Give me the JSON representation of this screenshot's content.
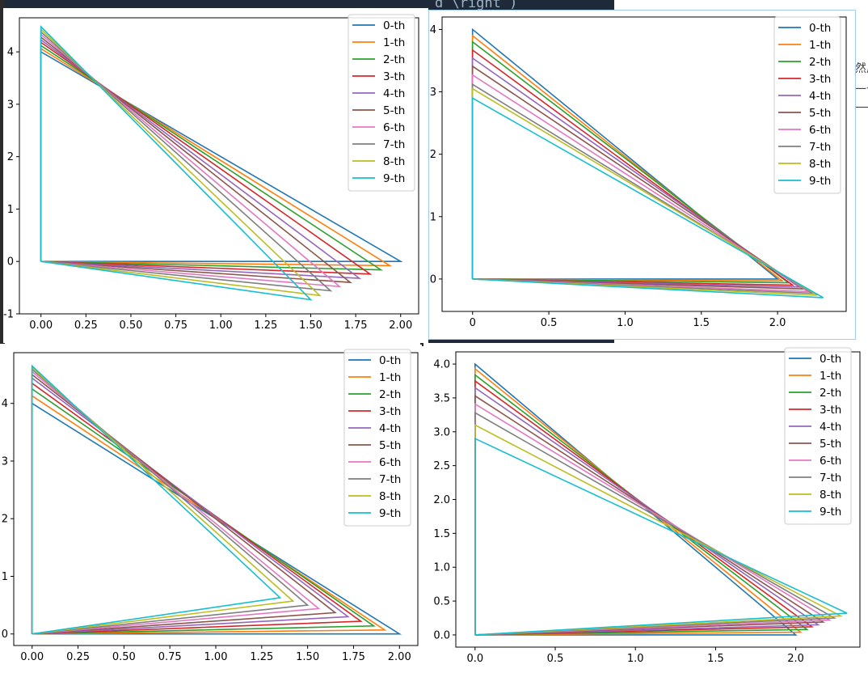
{
  "background": {
    "top_code_text": "d \\right )",
    "right_cjk_top": "然后",
    "right_cjk_bottom": "一个",
    "editor_bg": "#1e2a3a",
    "side_bg": "#2b2b2b"
  },
  "colors": [
    "#1f77b4",
    "#ff7f0e",
    "#2ca02c",
    "#d62728",
    "#9467bd",
    "#8c564b",
    "#e377c2",
    "#7f7f7f",
    "#bcbd22",
    "#17becf"
  ],
  "chart_data": [
    {
      "id": "top-left",
      "type": "line",
      "title": "",
      "xlabel": "",
      "ylabel": "",
      "xlim": [
        -0.12,
        2.1
      ],
      "ylim": [
        -1.0,
        4.65
      ],
      "xticks": [
        0,
        0.25,
        0.5,
        0.75,
        1.0,
        1.25,
        1.5,
        1.75,
        2.0
      ],
      "xtick_labels": [
        "0.00",
        "0.25",
        "0.50",
        "0.75",
        "1.00",
        "1.25",
        "1.50",
        "1.75",
        "2.00"
      ],
      "yticks": [
        -1,
        0,
        1,
        2,
        3,
        4
      ],
      "ytick_labels": [
        "-1",
        "0",
        "1",
        "2",
        "3",
        "4"
      ],
      "legend": "top-right",
      "series": [
        {
          "name": "0-th",
          "x": [
            0,
            0,
            2.0,
            0
          ],
          "y": [
            0,
            4.0,
            0,
            0
          ]
        },
        {
          "name": "1-th",
          "x": [
            0,
            0,
            1.94,
            0
          ],
          "y": [
            0,
            4.06,
            -0.08,
            0
          ]
        },
        {
          "name": "2-th",
          "x": [
            0,
            0,
            1.89,
            0
          ],
          "y": [
            0,
            4.12,
            -0.16,
            0
          ]
        },
        {
          "name": "3-th",
          "x": [
            0,
            0,
            1.83,
            0
          ],
          "y": [
            0,
            4.18,
            -0.24,
            0
          ]
        },
        {
          "name": "4-th",
          "x": [
            0,
            0,
            1.77,
            0
          ],
          "y": [
            0,
            4.23,
            -0.32,
            0
          ]
        },
        {
          "name": "5-th",
          "x": [
            0,
            0,
            1.72,
            0
          ],
          "y": [
            0,
            4.28,
            -0.4,
            0
          ]
        },
        {
          "name": "6-th",
          "x": [
            0,
            0,
            1.66,
            0
          ],
          "y": [
            0,
            4.33,
            -0.48,
            0
          ]
        },
        {
          "name": "7-th",
          "x": [
            0,
            0,
            1.61,
            0
          ],
          "y": [
            0,
            4.38,
            -0.56,
            0
          ]
        },
        {
          "name": "8-th",
          "x": [
            0,
            0,
            1.55,
            0
          ],
          "y": [
            0,
            4.43,
            -0.65,
            0
          ]
        },
        {
          "name": "9-th",
          "x": [
            0,
            0,
            1.5,
            0
          ],
          "y": [
            0,
            4.48,
            -0.73,
            0
          ]
        }
      ]
    },
    {
      "id": "top-right",
      "type": "line",
      "title": "",
      "xlabel": "",
      "ylabel": "",
      "xlim": [
        -0.2,
        2.45
      ],
      "ylim": [
        -0.52,
        4.2
      ],
      "xticks": [
        0,
        0.5,
        1.0,
        1.5,
        2.0
      ],
      "xtick_labels": [
        "0",
        "0.5",
        "1.0",
        "1.5",
        "2.0"
      ],
      "yticks": [
        0,
        1,
        2,
        3,
        4
      ],
      "ytick_labels": [
        "0",
        "1",
        "2",
        "3",
        "4"
      ],
      "legend": "top-right",
      "series": [
        {
          "name": "0-th",
          "x": [
            0,
            0,
            2.0,
            0
          ],
          "y": [
            0,
            4.0,
            0,
            0
          ]
        },
        {
          "name": "1-th",
          "x": [
            0,
            0,
            2.03,
            0
          ],
          "y": [
            0,
            3.9,
            -0.03,
            0
          ]
        },
        {
          "name": "2-th",
          "x": [
            0,
            0,
            2.07,
            0
          ],
          "y": [
            0,
            3.8,
            -0.06,
            0
          ]
        },
        {
          "name": "3-th",
          "x": [
            0,
            0,
            2.1,
            0
          ],
          "y": [
            0,
            3.67,
            -0.1,
            0
          ]
        },
        {
          "name": "4-th",
          "x": [
            0,
            0,
            2.14,
            0
          ],
          "y": [
            0,
            3.54,
            -0.13,
            0
          ]
        },
        {
          "name": "5-th",
          "x": [
            0,
            0,
            2.17,
            0
          ],
          "y": [
            0,
            3.41,
            -0.16,
            0
          ]
        },
        {
          "name": "6-th",
          "x": [
            0,
            0,
            2.2,
            0
          ],
          "y": [
            0,
            3.27,
            -0.2,
            0
          ]
        },
        {
          "name": "7-th",
          "x": [
            0,
            0,
            2.23,
            0
          ],
          "y": [
            0,
            3.12,
            -0.23,
            0
          ]
        },
        {
          "name": "8-th",
          "x": [
            0,
            0,
            2.26,
            0
          ],
          "y": [
            0,
            3.05,
            -0.26,
            0
          ]
        },
        {
          "name": "9-th",
          "x": [
            0,
            0,
            2.3,
            0
          ],
          "y": [
            0,
            2.9,
            -0.3,
            0
          ]
        }
      ]
    },
    {
      "id": "bottom-left",
      "type": "line",
      "title": "",
      "xlabel": "",
      "ylabel": "",
      "xlim": [
        -0.1,
        2.1
      ],
      "ylim": [
        -0.2,
        4.88
      ],
      "xticks": [
        0,
        0.25,
        0.5,
        0.75,
        1.0,
        1.25,
        1.5,
        1.75,
        2.0
      ],
      "xtick_labels": [
        "0.00",
        "0.25",
        "0.50",
        "0.75",
        "1.00",
        "1.25",
        "1.50",
        "1.75",
        "2.00"
      ],
      "yticks": [
        0,
        1,
        2,
        3,
        4
      ],
      "ytick_labels": [
        "0",
        "1",
        "2",
        "3",
        "4"
      ],
      "legend": "top-right",
      "series": [
        {
          "name": "0-th",
          "x": [
            0,
            0,
            2.0,
            0
          ],
          "y": [
            0,
            4.0,
            0,
            0
          ]
        },
        {
          "name": "1-th",
          "x": [
            0,
            0,
            1.92,
            0
          ],
          "y": [
            0,
            4.13,
            0.07,
            0
          ]
        },
        {
          "name": "2-th",
          "x": [
            0,
            0,
            1.86,
            0
          ],
          "y": [
            0,
            4.25,
            0.14,
            0
          ]
        },
        {
          "name": "3-th",
          "x": [
            0,
            0,
            1.79,
            0
          ],
          "y": [
            0,
            4.35,
            0.22,
            0
          ]
        },
        {
          "name": "4-th",
          "x": [
            0,
            0,
            1.72,
            0
          ],
          "y": [
            0,
            4.44,
            0.3,
            0
          ]
        },
        {
          "name": "5-th",
          "x": [
            0,
            0,
            1.65,
            0
          ],
          "y": [
            0,
            4.5,
            0.37,
            0
          ]
        },
        {
          "name": "6-th",
          "x": [
            0,
            0,
            1.56,
            0
          ],
          "y": [
            0,
            4.55,
            0.44,
            0
          ]
        },
        {
          "name": "7-th",
          "x": [
            0,
            0,
            1.5,
            0
          ],
          "y": [
            0,
            4.59,
            0.5,
            0
          ]
        },
        {
          "name": "8-th",
          "x": [
            0,
            0,
            1.42,
            0
          ],
          "y": [
            0,
            4.62,
            0.57,
            0
          ]
        },
        {
          "name": "9-th",
          "x": [
            0,
            0,
            1.35,
            0
          ],
          "y": [
            0,
            4.65,
            0.63,
            0
          ]
        }
      ]
    },
    {
      "id": "bottom-right",
      "type": "line",
      "title": "",
      "xlabel": "",
      "ylabel": "",
      "xlim": [
        -0.12,
        2.4
      ],
      "ylim": [
        -0.18,
        4.18
      ],
      "xticks": [
        0,
        0.5,
        1.0,
        1.5,
        2.0
      ],
      "xtick_labels": [
        "0.0",
        "0.5",
        "1.0",
        "1.5",
        "2.0"
      ],
      "yticks": [
        0,
        0.5,
        1.0,
        1.5,
        2.0,
        2.5,
        3.0,
        3.5,
        4.0
      ],
      "ytick_labels": [
        "0.0",
        "0.5",
        "1.0",
        "1.5",
        "2.0",
        "2.5",
        "3.0",
        "3.5",
        "4.0"
      ],
      "legend": "top-right",
      "series": [
        {
          "name": "0-th",
          "x": [
            0,
            0,
            2.0,
            0
          ],
          "y": [
            0,
            4.0,
            0,
            0
          ]
        },
        {
          "name": "1-th",
          "x": [
            0,
            0,
            2.03,
            0
          ],
          "y": [
            0,
            3.93,
            0.04,
            0
          ]
        },
        {
          "name": "2-th",
          "x": [
            0,
            0,
            2.07,
            0
          ],
          "y": [
            0,
            3.84,
            0.08,
            0
          ]
        },
        {
          "name": "3-th",
          "x": [
            0,
            0,
            2.1,
            0
          ],
          "y": [
            0,
            3.75,
            0.12,
            0
          ]
        },
        {
          "name": "4-th",
          "x": [
            0,
            0,
            2.14,
            0
          ],
          "y": [
            0,
            3.65,
            0.15,
            0
          ]
        },
        {
          "name": "5-th",
          "x": [
            0,
            0,
            2.17,
            0
          ],
          "y": [
            0,
            3.53,
            0.19,
            0
          ]
        },
        {
          "name": "6-th",
          "x": [
            0,
            0,
            2.21,
            0
          ],
          "y": [
            0,
            3.41,
            0.22,
            0
          ]
        },
        {
          "name": "7-th",
          "x": [
            0,
            0,
            2.24,
            0
          ],
          "y": [
            0,
            3.28,
            0.25,
            0
          ]
        },
        {
          "name": "8-th",
          "x": [
            0,
            0,
            2.28,
            0
          ],
          "y": [
            0,
            3.1,
            0.28,
            0
          ]
        },
        {
          "name": "9-th",
          "x": [
            0,
            0,
            2.32,
            0
          ],
          "y": [
            0,
            2.9,
            0.32,
            0
          ]
        }
      ]
    }
  ]
}
